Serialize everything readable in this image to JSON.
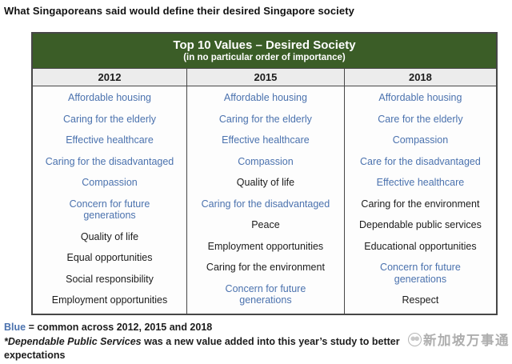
{
  "title": "What Singaporeans said would define their desired Singapore society",
  "table": {
    "header": {
      "title": "Top 10 Values – Desired Society",
      "subtitle": "(in no particular order of importance)"
    },
    "columns": [
      {
        "year": "2012",
        "values": [
          {
            "text": "Affordable housing",
            "blue": true
          },
          {
            "text": "Caring for the elderly",
            "blue": true
          },
          {
            "text": "Effective healthcare",
            "blue": true
          },
          {
            "text": "Caring for the disadvantaged",
            "blue": true
          },
          {
            "text": "Compassion",
            "blue": true
          },
          {
            "text": "Concern for future\ngenerations",
            "blue": true
          },
          {
            "text": "Quality of life",
            "blue": false
          },
          {
            "text": "Equal opportunities",
            "blue": false
          },
          {
            "text": "Social responsibility",
            "blue": false
          },
          {
            "text": "Employment opportunities",
            "blue": false
          }
        ]
      },
      {
        "year": "2015",
        "values": [
          {
            "text": "Affordable housing",
            "blue": true
          },
          {
            "text": "Caring for the elderly",
            "blue": true
          },
          {
            "text": "Effective healthcare",
            "blue": true
          },
          {
            "text": "Compassion",
            "blue": true
          },
          {
            "text": "Quality of life",
            "blue": false
          },
          {
            "text": "Caring for the disadvantaged",
            "blue": true
          },
          {
            "text": "Peace",
            "blue": false
          },
          {
            "text": "Employment opportunities",
            "blue": false
          },
          {
            "text": "Caring for the environment",
            "blue": false
          },
          {
            "text": "Concern for future\ngenerations",
            "blue": true
          }
        ]
      },
      {
        "year": "2018",
        "values": [
          {
            "text": "Affordable housing",
            "blue": true
          },
          {
            "text": "Care for the elderly",
            "blue": true
          },
          {
            "text": "Compassion",
            "blue": true
          },
          {
            "text": "Care for the disadvantaged",
            "blue": true
          },
          {
            "text": "Effective healthcare",
            "blue": true
          },
          {
            "text": "Caring for the environment",
            "blue": false
          },
          {
            "text": "Dependable public services",
            "blue": false
          },
          {
            "text": "Educational opportunities",
            "blue": false
          },
          {
            "text": "Concern for future\ngenerations",
            "blue": true
          },
          {
            "text": "Respect",
            "blue": false
          }
        ]
      }
    ]
  },
  "legend": {
    "blue_word": "Blue",
    "rest": "= common across 2012, 2015 and 2018"
  },
  "footnote": {
    "marker_title": "*Dependable Public Services",
    "text": "was a new value added into this year’s study to better",
    "continuation": "expectations"
  },
  "watermark": {
    "text": "新加坡万事通"
  },
  "colors": {
    "header_green": "#3b5d27",
    "common_blue": "#4b72ae",
    "year_row_bg": "#ececec"
  }
}
